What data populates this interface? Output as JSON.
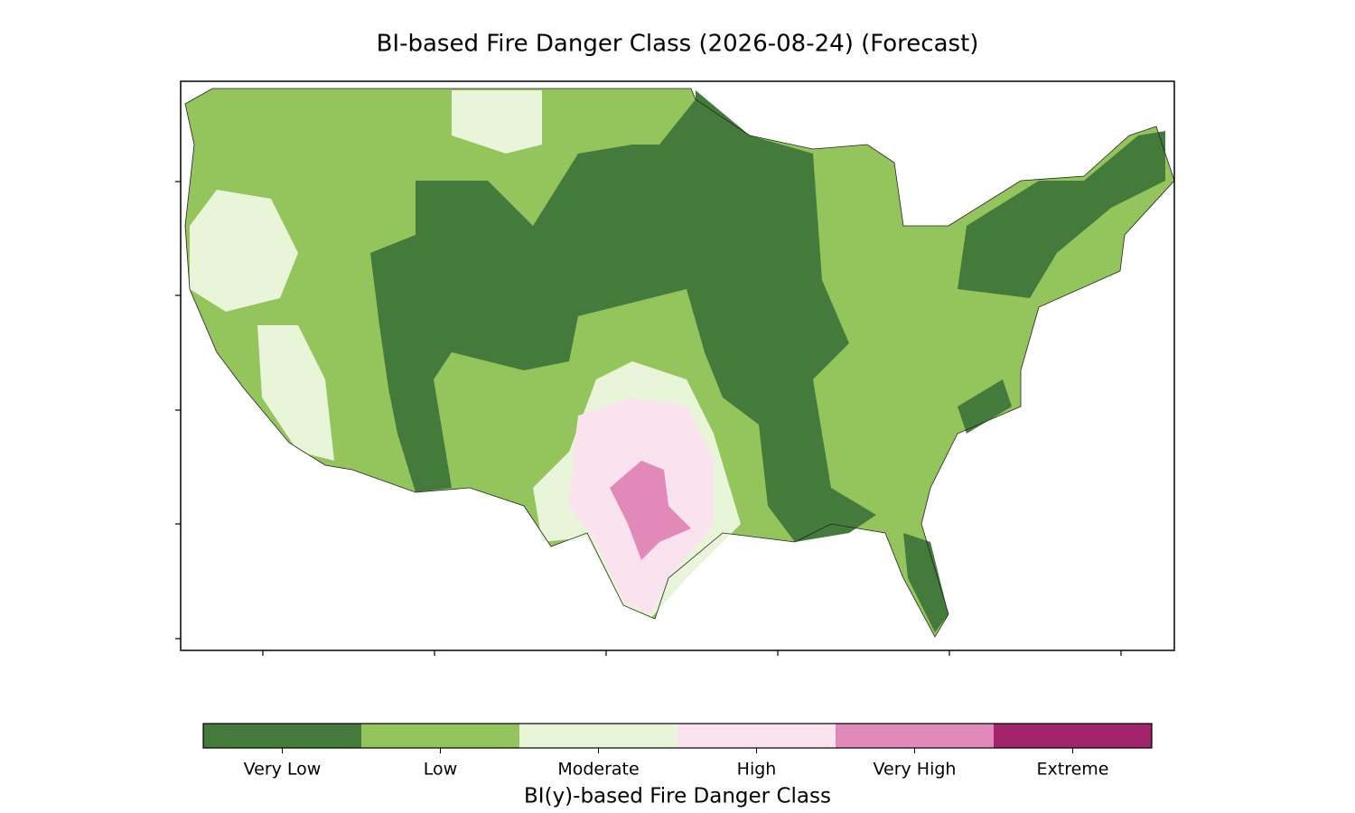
{
  "chart_data": {
    "type": "map",
    "title": "BI-based Fire Danger Class (2026-08-24) (Forecast)",
    "colorbar": {
      "label": "BI(y)-based Fire Danger Class",
      "classes": [
        {
          "name": "Very Low",
          "color": "#447b3c"
        },
        {
          "name": "Low",
          "color": "#93c55c"
        },
        {
          "name": "Moderate",
          "color": "#e8f5d9"
        },
        {
          "name": "High",
          "color": "#fbe2ef"
        },
        {
          "name": "Very High",
          "color": "#e189b8"
        },
        {
          "name": "Extreme",
          "color": "#a2246b"
        }
      ]
    }
  }
}
